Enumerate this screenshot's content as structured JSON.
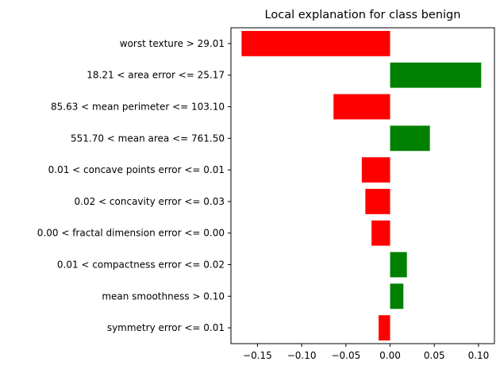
{
  "chart_data": {
    "type": "bar",
    "orientation": "horizontal",
    "title": "Local explanation for class benign",
    "xlabel": "",
    "ylabel": "",
    "categories": [
      "worst texture > 29.01",
      "18.21 < area error <= 25.17",
      "85.63 < mean perimeter <= 103.10",
      "551.70 < mean area <= 761.50",
      "0.01 < concave points error <= 0.01",
      "0.02 < concavity error <= 0.03",
      "0.00 < fractal dimension error <= 0.00",
      "0.01 < compactness error <= 0.02",
      "mean smoothness > 0.10",
      "symmetry error <= 0.01"
    ],
    "values": [
      -0.168,
      0.103,
      -0.064,
      0.045,
      -0.032,
      -0.028,
      -0.021,
      0.019,
      0.015,
      -0.013
    ],
    "xlim": [
      -0.18,
      0.118
    ],
    "xticks": [
      -0.15,
      -0.1,
      -0.05,
      0.0,
      0.05,
      0.1
    ],
    "xtick_labels": [
      "−0.15",
      "−0.10",
      "−0.05",
      "0.00",
      "0.05",
      "0.10"
    ],
    "colors": {
      "positive": "#008000",
      "negative": "#ff0000"
    },
    "grid": false,
    "legend": "none"
  }
}
